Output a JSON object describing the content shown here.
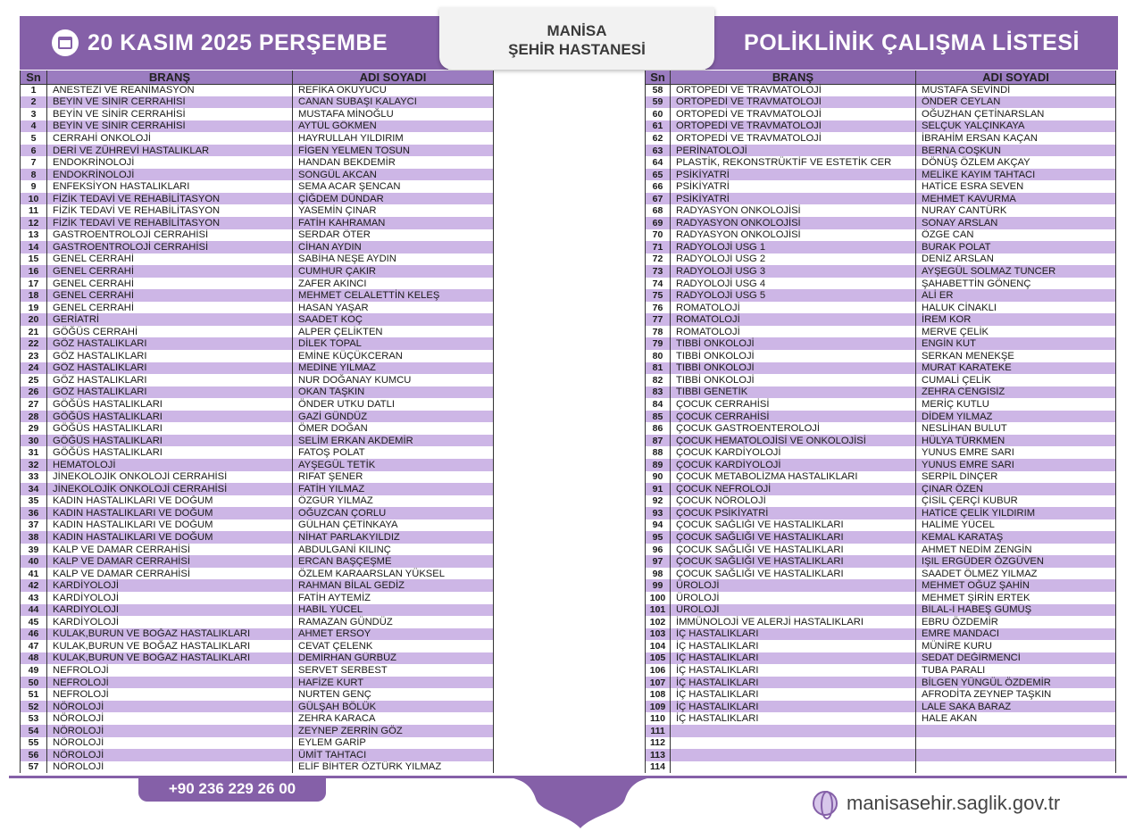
{
  "header": {
    "date": "20 KASIM 2025 PERŞEMBE",
    "hospital_line1": "MANİSA",
    "hospital_line2": "ŞEHİR HASTANESİ",
    "title": "POLİKLİNİK ÇALIŞMA LİSTESİ"
  },
  "columns": {
    "sn": "Sn",
    "brans": "BRANŞ",
    "adi": "ADI SOYADI"
  },
  "colors": {
    "accent": "#8560a8",
    "row_alt": "#cdb6e6"
  },
  "left_rows": [
    [
      "1",
      "ANESTEZİ VE REANİMASYON",
      "REFİKA OKUYUCU"
    ],
    [
      "2",
      "BEYİN VE SİNİR CERRAHİSİ",
      "CANAN SUBAŞI KALAYCI"
    ],
    [
      "3",
      "BEYİN VE SİNİR CERRAHİSİ",
      "MUSTAFA MİNOĞLU"
    ],
    [
      "4",
      "BEYİN VE SİNİR CERRAHİSİ",
      "AYTÜL GÖKMEN"
    ],
    [
      "5",
      "CERRAHİ ONKOLOJİ",
      "HAYRULLAH YILDIRIM"
    ],
    [
      "6",
      "DERİ VE ZÜHREVİ HASTALIKLAR",
      "FİGEN YELMEN TOSUN"
    ],
    [
      "7",
      "ENDOKRİNOLOJİ",
      "HANDAN BEKDEMİR"
    ],
    [
      "8",
      "ENDOKRİNOLOJİ",
      "SONGÜL AKCAN"
    ],
    [
      "9",
      "ENFEKSİYON HASTALIKLARI",
      "SEMA ACAR ŞENCAN"
    ],
    [
      "10",
      "FİZİK TEDAVİ VE REHABİLİTASYON",
      "ÇİĞDEM DÜNDAR"
    ],
    [
      "11",
      "FİZİK TEDAVİ VE REHABİLİTASYON",
      "YASEMİN ÇINAR"
    ],
    [
      "12",
      "FİZİK TEDAVİ VE REHABİLİTASYON",
      "FATİH KAHRAMAN"
    ],
    [
      "13",
      "GASTROENTROLOJİ CERRAHİSİ",
      "SERDAR ÖTER"
    ],
    [
      "14",
      "GASTROENTROLOJİ CERRAHİSİ",
      "CİHAN AYDIN"
    ],
    [
      "15",
      "GENEL CERRAHİ",
      "SABİHA NEŞE AYDIN"
    ],
    [
      "16",
      "GENEL CERRAHİ",
      "CUMHUR ÇAKIR"
    ],
    [
      "17",
      "GENEL CERRAHİ",
      "ZAFER AKINCI"
    ],
    [
      "18",
      "GENEL CERRAHİ",
      "MEHMET CELALETTİN KELEŞ"
    ],
    [
      "19",
      "GENEL CERRAHİ",
      "HASAN YAŞAR"
    ],
    [
      "20",
      "GERİATRİ",
      "SAADET KOÇ"
    ],
    [
      "21",
      "GÖĞÜS CERRAHİ",
      "ALPER ÇELİKTEN"
    ],
    [
      "22",
      "GÖZ HASTALIKLARI",
      "DİLEK TOPAL"
    ],
    [
      "23",
      "GÖZ HASTALIKLARI",
      "EMİNE KÜÇÜKCERAN"
    ],
    [
      "24",
      "GÖZ HASTALIKLARI",
      "MEDİNE YILMAZ"
    ],
    [
      "25",
      "GÖZ HASTALIKLARI",
      "NUR DOĞANAY KUMCU"
    ],
    [
      "26",
      "GÖZ HASTALIKLARI",
      "OKAN TAŞKIN"
    ],
    [
      "27",
      "GÖĞÜS HASTALIKLARI",
      "ÖNDER UTKU DATLI"
    ],
    [
      "28",
      "GÖĞÜS HASTALIKLARI",
      "GAZİ GÜNDÜZ"
    ],
    [
      "29",
      "GÖĞÜS HASTALIKLARI",
      "ÖMER DOĞAN"
    ],
    [
      "30",
      "GÖĞÜS HASTALIKLARI",
      "SELİM ERKAN AKDEMİR"
    ],
    [
      "31",
      "GÖĞÜS HASTALIKLARI",
      "FATOŞ POLAT"
    ],
    [
      "32",
      "HEMATOLOJİ",
      "AYŞEGÜL TETİK"
    ],
    [
      "33",
      "JİNEKOLOJİK ONKOLOJİ CERRAHİSİ",
      "RIFAT ŞENER"
    ],
    [
      "34",
      "JİNEKOLOJİK ONKOLOJİ CERRAHİSİ",
      "FATİH YILMAZ"
    ],
    [
      "35",
      "KADIN HASTALIKLARI VE DOĞUM",
      "ÖZGÜR YILMAZ"
    ],
    [
      "36",
      "KADIN HASTALIKLARI VE DOĞUM",
      "OĞUZCAN ÇORLU"
    ],
    [
      "37",
      "KADIN HASTALIKLARI VE DOĞUM",
      "GÜLHAN ÇETİNKAYA"
    ],
    [
      "38",
      "KADIN HASTALIKLARI VE DOĞUM",
      "NİHAT PARLAKYILDIZ"
    ],
    [
      "39",
      "KALP VE DAMAR CERRAHİSİ",
      "ABDULGANİ KILINÇ"
    ],
    [
      "40",
      "KALP VE DAMAR CERRAHİSİ",
      "ERCAN BAŞÇEŞME"
    ],
    [
      "41",
      "KALP VE DAMAR CERRAHİSİ",
      "ÖZLEM KARAARSLAN YÜKSEL"
    ],
    [
      "42",
      "KARDİYOLOJİ",
      "RAHMAN BİLAL GEDİZ"
    ],
    [
      "43",
      "KARDİYOLOJİ",
      "FATİH AYTEMİZ"
    ],
    [
      "44",
      "KARDİYOLOJİ",
      "HABİL YÜCEL"
    ],
    [
      "45",
      "KARDİYOLOJİ",
      "RAMAZAN GÜNDÜZ"
    ],
    [
      "46",
      "KULAK,BURUN VE BOĞAZ HASTALIKLARI",
      "AHMET ERSOY"
    ],
    [
      "47",
      "KULAK,BURUN VE BOĞAZ HASTALIKLARI",
      "CEVAT ÇELENK"
    ],
    [
      "48",
      "KULAK,BURUN VE BOĞAZ HASTALIKLARI",
      "DEMİRHAN GÜRBÜZ"
    ],
    [
      "49",
      "NEFROLOJİ",
      "SERVET SERBEST"
    ],
    [
      "50",
      "NEFROLOJİ",
      "HAFİZE KURT"
    ],
    [
      "51",
      "NEFROLOJİ",
      "NURTEN GENÇ"
    ],
    [
      "52",
      "NÖROLOJİ",
      "GÜLŞAH BÖLÜK"
    ],
    [
      "53",
      "NÖROLOJİ",
      "ZEHRA KARACA"
    ],
    [
      "54",
      "NÖROLOJİ",
      "ZEYNEP ZERRİN GÖZ"
    ],
    [
      "55",
      "NÖROLOJİ",
      "EYLEM GARİP"
    ],
    [
      "56",
      "NÖROLOJİ",
      "ÜMİT TAHTACI"
    ],
    [
      "57",
      "NÖROLOJİ",
      "ELİF BİHTER ÖZTÜRK YILMAZ"
    ]
  ],
  "right_rows": [
    [
      "58",
      "ORTOPEDİ VE TRAVMATOLOJİ",
      "MUSTAFA SEVİNDİ"
    ],
    [
      "59",
      "ORTOPEDİ VE TRAVMATOLOJİ",
      "ÖNDER CEYLAN"
    ],
    [
      "60",
      "ORTOPEDİ VE TRAVMATOLOJİ",
      "OĞUZHAN ÇETİNARSLAN"
    ],
    [
      "61",
      "ORTOPEDİ VE TRAVMATOLOJİ",
      "SELÇUK YALÇINKAYA"
    ],
    [
      "62",
      "ORTOPEDİ VE TRAVMATOLOJİ",
      "İBRAHİM ERSAN KAÇAN"
    ],
    [
      "63",
      "PERİNATOLOJİ",
      "BERNA COŞKUN"
    ],
    [
      "64",
      "PLASTİK, REKONSTRÜKTİF VE ESTETİK CER",
      "DÖNÜŞ ÖZLEM AKÇAY"
    ],
    [
      "65",
      "PSİKİYATRİ",
      "MELİKE KAYIM TAHTACI"
    ],
    [
      "66",
      "PSİKİYATRİ",
      "HATİCE ESRA SEVEN"
    ],
    [
      "67",
      "PSİKİYATRİ",
      "MEHMET KAVURMA"
    ],
    [
      "68",
      "RADYASYON ONKOLOJİSİ",
      "NURAY CANTÜRK"
    ],
    [
      "69",
      "RADYASYON ONKOLOJİSİ",
      "SONAY ARSLAN"
    ],
    [
      "70",
      "RADYASYON ONKOLOJİSİ",
      "ÖZGE CAN"
    ],
    [
      "71",
      "RADYOLOJİ USG 1",
      "BURAK POLAT"
    ],
    [
      "72",
      "RADYOLOJİ USG 2",
      "DENİZ ARSLAN"
    ],
    [
      "73",
      "RADYOLOJİ USG 3",
      "AYŞEGÜL SOLMAZ TUNCER"
    ],
    [
      "74",
      "RADYOLOJİ USG 4",
      "ŞAHABETTİN  GÖNENÇ"
    ],
    [
      "75",
      "RADYOLOJİ USG 5",
      "ALİ ER"
    ],
    [
      "76",
      "ROMATOLOJİ",
      "HALUK CİNAKLI"
    ],
    [
      "77",
      "ROMATOLOJİ",
      "İREM KOR"
    ],
    [
      "78",
      "ROMATOLOJİ",
      "MERVE ÇELİK"
    ],
    [
      "79",
      "TIBBİ ONKOLOJİ",
      "ENGİN KUT"
    ],
    [
      "80",
      "TIBBİ ONKOLOJİ",
      "SERKAN MENEKŞE"
    ],
    [
      "81",
      "TIBBİ ONKOLOJİ",
      "MURAT KARATEKE"
    ],
    [
      "82",
      "TIBBİ ONKOLOJİ",
      "CUMALİ ÇELİK"
    ],
    [
      "83",
      "TIBBİ GENETİK",
      "ZEHRA CENGİSİZ"
    ],
    [
      "84",
      "ÇOCUK CERRAHİSİ",
      "MERİÇ KUTLU"
    ],
    [
      "85",
      "ÇOCUK CERRAHİSİ",
      "DİDEM YILMAZ"
    ],
    [
      "86",
      "ÇOCUK GASTROENTEROLOJİ",
      "NESLİHAN BULUT"
    ],
    [
      "87",
      "ÇOCUK HEMATOLOJİSİ VE ONKOLOJİSİ",
      "HÜLYA TÜRKMEN"
    ],
    [
      "88",
      "ÇOCUK KARDİYOLOJİ",
      "YUNUS EMRE SARI"
    ],
    [
      "89",
      "ÇOCUK KARDİYOLOJİ",
      "YUNUS EMRE SARI"
    ],
    [
      "90",
      "ÇOCUK METABOLİZMA HASTALIKLARI",
      "SERPİL DİNÇER"
    ],
    [
      "91",
      "ÇOCUK NEFROLOJİ",
      "ÇINAR ÖZEN"
    ],
    [
      "92",
      "ÇOCUK NÖROLOJİ",
      "ÇİSİL ÇERÇİ KUBUR"
    ],
    [
      "93",
      "ÇOCUK PSİKİYATRİ",
      "HATİCE ÇELİK YILDIRIM"
    ],
    [
      "94",
      "ÇOCUK SAĞLIĞI VE HASTALIKLARI",
      "HALİME YÜCEL"
    ],
    [
      "95",
      "ÇOCUK SAĞLIĞI VE HASTALIKLARI",
      "KEMAL KARATAŞ"
    ],
    [
      "96",
      "ÇOCUK SAĞLIĞI VE HASTALIKLARI",
      "AHMET NEDİM ZENGİN"
    ],
    [
      "97",
      "ÇOCUK SAĞLIĞI VE HASTALIKLARI",
      "IŞIL ERGÜDER ÖZGÜVEN"
    ],
    [
      "98",
      "ÇOCUK SAĞLIĞI VE HASTALIKLARI",
      "SAADET ÖLMEZ YILMAZ"
    ],
    [
      "99",
      "ÜROLOJİ",
      "MEHMET OĞUZ ŞAHİN"
    ],
    [
      "100",
      "ÜROLOJİ",
      "MEHMET ŞİRİN ERTEK"
    ],
    [
      "101",
      "ÜROLOJİ",
      "BİLAL-İ HABEŞ GÜMÜŞ"
    ],
    [
      "102",
      "İMMÜNOLOJİ VE ALERJİ HASTALIKLARI",
      "EBRU ÖZDEMİR"
    ],
    [
      "103",
      "İÇ HASTALIKLARI",
      "EMRE MANDACI"
    ],
    [
      "104",
      "İÇ HASTALIKLARI",
      "MÜNİRE KURU"
    ],
    [
      "105",
      "İÇ HASTALIKLARI",
      "SEDAT DEĞİRMENCİ"
    ],
    [
      "106",
      "İÇ HASTALIKLARI",
      "TUBA PARALI"
    ],
    [
      "107",
      "İÇ HASTALIKLARI",
      "BİLGEN YÜNGÜL ÖZDEMİR"
    ],
    [
      "108",
      "İÇ HASTALIKLARI",
      "AFRODİTA ZEYNEP TAŞKIN"
    ],
    [
      "109",
      "İÇ HASTALIKLARI",
      "LALE SAKA BARAZ"
    ],
    [
      "110",
      "İÇ HASTALIKLARI",
      "HALE AKAN"
    ],
    [
      "111",
      "",
      ""
    ],
    [
      "112",
      "",
      ""
    ],
    [
      "113",
      "",
      ""
    ],
    [
      "114",
      "",
      ""
    ]
  ],
  "footer": {
    "phone": "+90 236 229 26 00",
    "website": "manisasehir.saglik.gov.tr",
    "website_icon": "globe-icon",
    "date_icon": "calendar-icon"
  }
}
